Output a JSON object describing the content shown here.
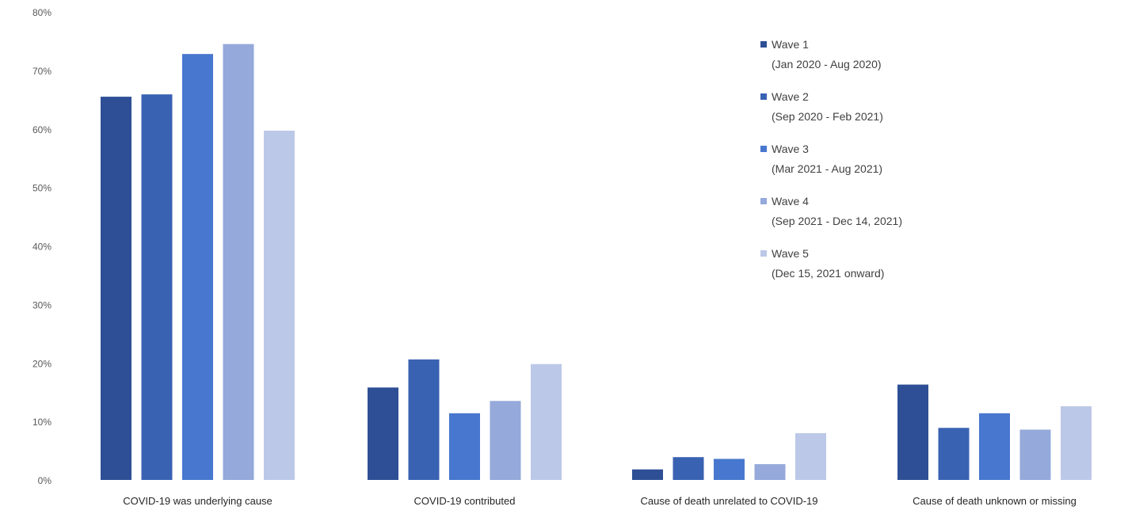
{
  "chart_data": {
    "type": "bar",
    "title": "",
    "xlabel": "",
    "ylabel": "",
    "ylim": [
      0,
      80
    ],
    "y_ticks": [
      "0%",
      "10%",
      "20%",
      "30%",
      "40%",
      "50%",
      "60%",
      "70%",
      "80%"
    ],
    "grid": false,
    "legend_position": "top-right",
    "categories": [
      "COVID-19 was underlying cause",
      "COVID-19 contributed",
      "Cause of death unrelated to COVID-19",
      "Cause of death unknown or missing"
    ],
    "series": [
      {
        "name": "Wave 1",
        "detail": "(Jan 2020 - Aug 2020)",
        "color": "#2e4f95",
        "values": [
          65.5,
          15.8,
          1.8,
          16.3
        ]
      },
      {
        "name": "Wave 2",
        "detail": "(Sep 2020 - Feb 2021)",
        "color": "#3a62b3",
        "values": [
          65.9,
          20.6,
          3.9,
          8.9
        ]
      },
      {
        "name": "Wave 3",
        "detail": "(Mar 2021 - Aug 2021)",
        "color": "#4777ce",
        "values": [
          72.8,
          11.4,
          3.6,
          11.4
        ]
      },
      {
        "name": "Wave 4",
        "detail": "(Sep 2021 - Dec 14, 2021)",
        "color": "#95a9da",
        "values": [
          74.5,
          13.5,
          2.7,
          8.6
        ]
      },
      {
        "name": "Wave 5",
        "detail": "(Dec 15, 2021 onward)",
        "color": "#bcc8e7",
        "values": [
          59.7,
          19.8,
          8.0,
          12.6
        ]
      }
    ]
  }
}
